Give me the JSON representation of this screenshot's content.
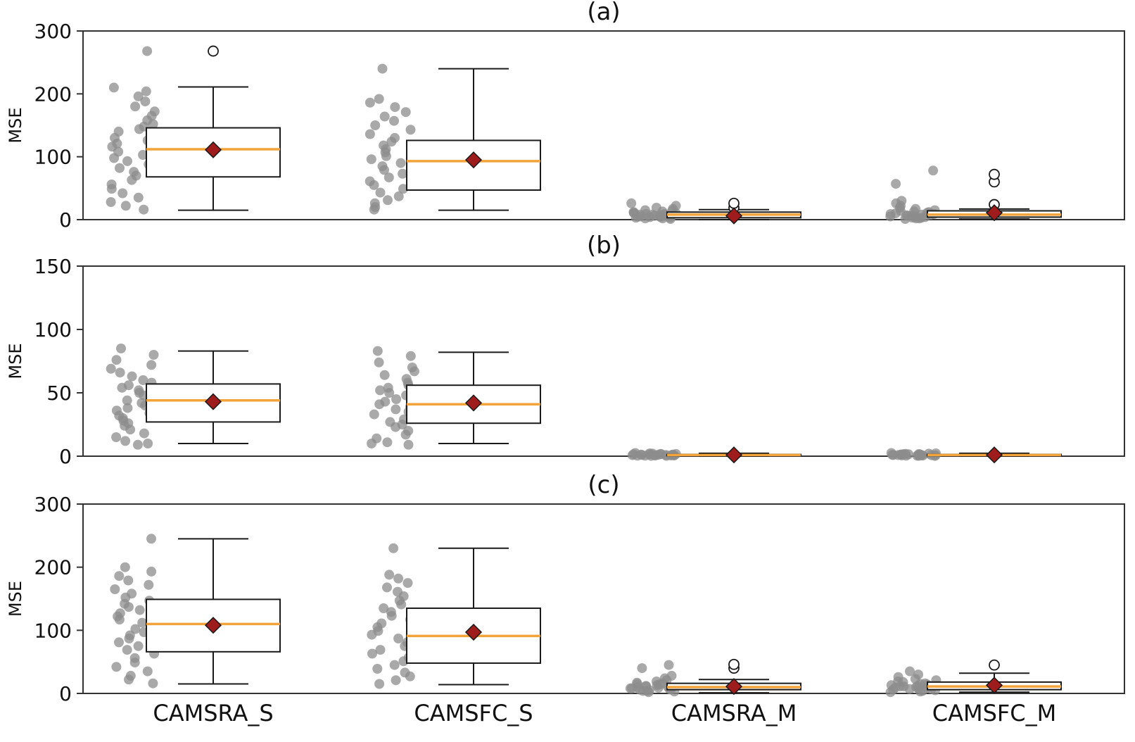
{
  "figure": {
    "kind": "stacked-boxplot-figure",
    "colors": {
      "median": "#f2a43a",
      "mean_fill": "#9e1c1c",
      "mean_edge": "#1a1a1a",
      "box_edge": "#1a1a1a",
      "scatter": "#8c8c8c",
      "flier_edge": "#1a1a1a",
      "axis": "#333333",
      "tick_text": "#111111",
      "background": "#ffffff"
    }
  },
  "chart_data": [
    {
      "type": "boxplot",
      "title": "(a)",
      "ylabel": "MSE",
      "ylim": [
        0,
        300
      ],
      "yticks": [
        0,
        100,
        200,
        300
      ],
      "show_x_tick_labels": false,
      "categories": [
        "CAMSRA_S",
        "CAMSFC_S",
        "CAMSRA_M",
        "CAMSFC_M"
      ],
      "boxes": [
        {
          "whislo": 15,
          "q1": 68,
          "med": 112,
          "q3": 146,
          "whishi": 211,
          "mean": 111,
          "fliers": [
            268
          ]
        },
        {
          "whislo": 15,
          "q1": 47,
          "med": 93,
          "q3": 126,
          "whishi": 240,
          "mean": 95,
          "fliers": []
        },
        {
          "whislo": 0,
          "q1": 3,
          "med": 8,
          "q3": 12,
          "whishi": 16,
          "mean": 6,
          "fliers": [
            19,
            26
          ]
        },
        {
          "whislo": 1,
          "q1": 4,
          "med": 8,
          "q3": 14,
          "whishi": 17,
          "mean": 11,
          "fliers": [
            24,
            60,
            72
          ]
        }
      ],
      "scatter": [
        [
          268,
          210,
          204,
          196,
          188,
          180,
          172,
          165,
          158,
          152,
          148,
          144,
          140,
          136,
          130,
          126,
          121,
          116,
          112,
          108,
          103,
          98,
          93,
          88,
          82,
          76,
          70,
          63,
          56,
          49,
          42,
          35,
          28,
          22,
          16
        ],
        [
          240,
          192,
          186,
          179,
          171,
          164,
          157,
          150,
          143,
          136,
          130,
          124,
          118,
          112,
          107,
          101,
          96,
          90,
          85,
          79,
          73,
          67,
          61,
          55,
          49,
          43,
          37,
          31,
          26,
          20,
          16
        ],
        [
          26,
          22,
          19,
          17,
          15,
          14,
          13,
          12,
          11,
          10,
          10,
          9,
          9,
          8,
          8,
          7,
          7,
          6,
          6,
          5,
          5,
          4,
          4,
          3,
          3,
          2,
          2,
          1
        ],
        [
          78,
          57,
          30,
          26,
          22,
          19,
          17,
          15,
          14,
          13,
          12,
          11,
          10,
          9,
          9,
          8,
          8,
          7,
          6,
          6,
          5,
          5,
          4,
          3,
          3,
          2,
          2,
          1
        ]
      ]
    },
    {
      "type": "boxplot",
      "title": "(b)",
      "ylabel": "MSE",
      "ylim": [
        0,
        150
      ],
      "yticks": [
        0,
        50,
        100,
        150
      ],
      "show_x_tick_labels": false,
      "categories": [
        "CAMSRA_S",
        "CAMSFC_S",
        "CAMSRA_M",
        "CAMSFC_M"
      ],
      "boxes": [
        {
          "whislo": 10,
          "q1": 27,
          "med": 44,
          "q3": 57,
          "whishi": 83,
          "mean": 43,
          "fliers": []
        },
        {
          "whislo": 10,
          "q1": 26,
          "med": 41,
          "q3": 56,
          "whishi": 82,
          "mean": 42,
          "fliers": []
        },
        {
          "whislo": 0,
          "q1": 0.4,
          "med": 0.9,
          "q3": 1.4,
          "whishi": 2.3,
          "mean": 1,
          "fliers": []
        },
        {
          "whislo": 0,
          "q1": 0.4,
          "med": 0.9,
          "q3": 1.4,
          "whishi": 2.3,
          "mean": 1,
          "fliers": []
        }
      ],
      "scatter": [
        [
          85,
          80,
          76,
          72,
          69,
          66,
          63,
          60,
          58,
          56,
          54,
          52,
          50,
          48,
          46,
          44,
          42,
          40,
          38,
          36,
          34,
          32,
          30,
          28,
          26,
          24,
          21,
          18,
          15,
          12,
          10,
          9
        ],
        [
          83,
          79,
          74,
          70,
          67,
          64,
          61,
          58,
          56,
          54,
          52,
          50,
          48,
          45,
          43,
          41,
          39,
          37,
          35,
          33,
          31,
          29,
          27,
          25,
          23,
          20,
          17,
          14,
          11,
          10,
          9
        ],
        [
          2.5,
          2.2,
          2.0,
          1.8,
          1.7,
          1.6,
          1.5,
          1.4,
          1.3,
          1.2,
          1.1,
          1.0,
          1.0,
          0.9,
          0.8,
          0.8,
          0.7,
          0.6,
          0.6,
          0.5,
          0.4,
          0.4,
          0.3,
          0.2
        ],
        [
          2.5,
          2.2,
          2.0,
          1.8,
          1.7,
          1.6,
          1.5,
          1.4,
          1.3,
          1.2,
          1.1,
          1.0,
          1.0,
          0.9,
          0.8,
          0.8,
          0.7,
          0.6,
          0.6,
          0.5,
          0.4,
          0.4,
          0.3,
          0.2
        ]
      ]
    },
    {
      "type": "boxplot",
      "title": "(c)",
      "ylabel": "MSE",
      "ylim": [
        0,
        300
      ],
      "yticks": [
        0,
        100,
        200,
        300
      ],
      "show_x_tick_labels": true,
      "categories": [
        "CAMSRA_S",
        "CAMSFC_S",
        "CAMSRA_M",
        "CAMSFC_M"
      ],
      "boxes": [
        {
          "whislo": 15,
          "q1": 66,
          "med": 110,
          "q3": 149,
          "whishi": 245,
          "mean": 108,
          "fliers": []
        },
        {
          "whislo": 14,
          "q1": 48,
          "med": 91,
          "q3": 135,
          "whishi": 230,
          "mean": 97,
          "fliers": []
        },
        {
          "whislo": 1,
          "q1": 6,
          "med": 10,
          "q3": 16,
          "whishi": 22,
          "mean": 11,
          "fliers": [
            40,
            46
          ]
        },
        {
          "whislo": 2,
          "q1": 6,
          "med": 11,
          "q3": 18,
          "whishi": 32,
          "mean": 13,
          "fliers": [
            45
          ]
        }
      ],
      "scatter": [
        [
          245,
          200,
          193,
          186,
          179,
          172,
          165,
          158,
          152,
          147,
          142,
          137,
          132,
          127,
          122,
          117,
          112,
          107,
          102,
          97,
          92,
          87,
          81,
          75,
          69,
          63,
          56,
          49,
          42,
          35,
          28,
          22,
          16
        ],
        [
          230,
          188,
          182,
          175,
          168,
          161,
          154,
          147,
          141,
          135,
          129,
          123,
          117,
          111,
          105,
          99,
          93,
          87,
          81,
          75,
          69,
          63,
          57,
          51,
          45,
          39,
          33,
          27,
          21,
          15
        ],
        [
          45,
          40,
          28,
          24,
          21,
          19,
          17,
          16,
          15,
          14,
          13,
          12,
          11,
          10,
          10,
          9,
          8,
          8,
          7,
          6,
          6,
          5,
          4,
          4,
          3,
          2
        ],
        [
          35,
          30,
          26,
          23,
          21,
          19,
          18,
          16,
          15,
          14,
          13,
          12,
          11,
          11,
          10,
          9,
          9,
          8,
          7,
          7,
          6,
          5,
          4,
          3,
          2
        ]
      ]
    }
  ]
}
